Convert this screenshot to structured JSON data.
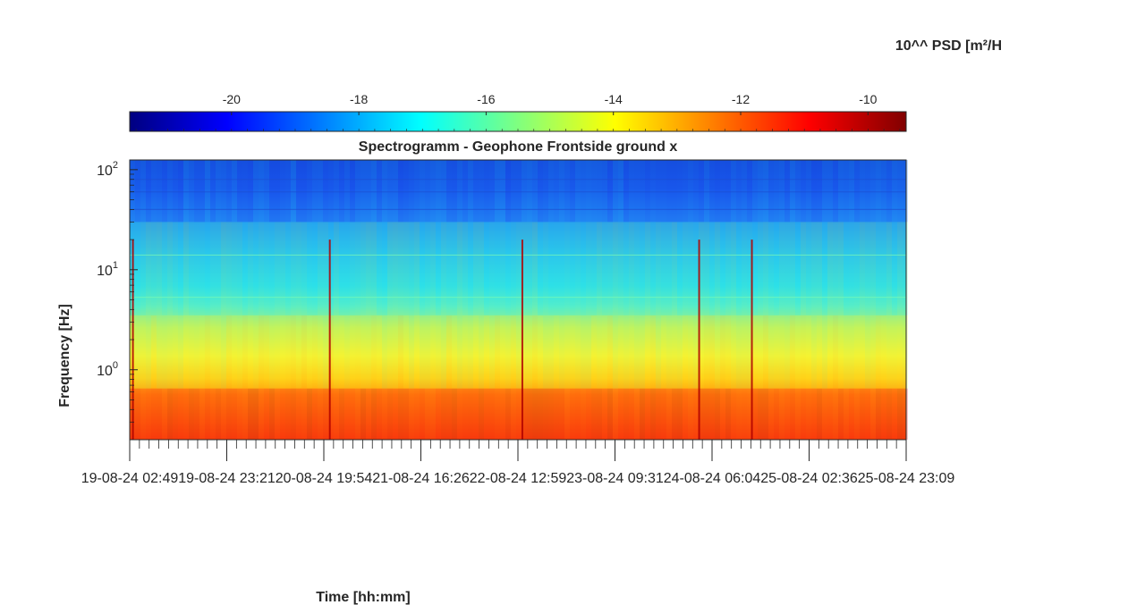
{
  "chart_data": {
    "type": "heatmap",
    "title": "Spectrogramm - Geophone Frontside ground x",
    "xlabel": "Time [hh:mm]",
    "ylabel": "Frequency [Hz]",
    "colorbar": {
      "label": "10^^ PSD [m²/H",
      "ticks": [
        "-20",
        "-18",
        "-16",
        "-14",
        "-12",
        "-10"
      ],
      "tick_values": [
        -20,
        -18,
        -16,
        -14,
        -12,
        -10
      ],
      "range": [
        -21.6,
        -9.4
      ],
      "colormap": "jet",
      "placement": "top"
    },
    "x_ticks": [
      "19-08-24 02:49",
      "19-08-24 23:21",
      "20-08-24 19:54",
      "21-08-24 16:26",
      "22-08-24 12:59",
      "23-08-24 09:31",
      "24-08-24 06:04",
      "25-08-24 02:36",
      "25-08-24 23:09"
    ],
    "y_scale": "log",
    "y_ticks": [
      {
        "base": "10",
        "exp": "0",
        "value": 1
      },
      {
        "base": "10",
        "exp": "1",
        "value": 10
      },
      {
        "base": "10",
        "exp": "2",
        "value": 100
      }
    ],
    "ylim": [
      0.2,
      125
    ],
    "bands_log10_psd": [
      {
        "freq_range_hz": [
          0.2,
          0.65
        ],
        "value": -10.8
      },
      {
        "freq_range_hz": [
          0.65,
          3.5
        ],
        "value": -14.2
      },
      {
        "freq_range_hz": [
          3.5,
          30
        ],
        "value": -16.2
      },
      {
        "freq_range_hz": [
          30,
          125
        ],
        "value": -19.0
      }
    ],
    "transients_time": [
      "19-08-24 03:30",
      "20-08-24 21:10",
      "22-08-24 13:55",
      "24-08-24 03:20",
      "24-08-24 14:30"
    ]
  }
}
